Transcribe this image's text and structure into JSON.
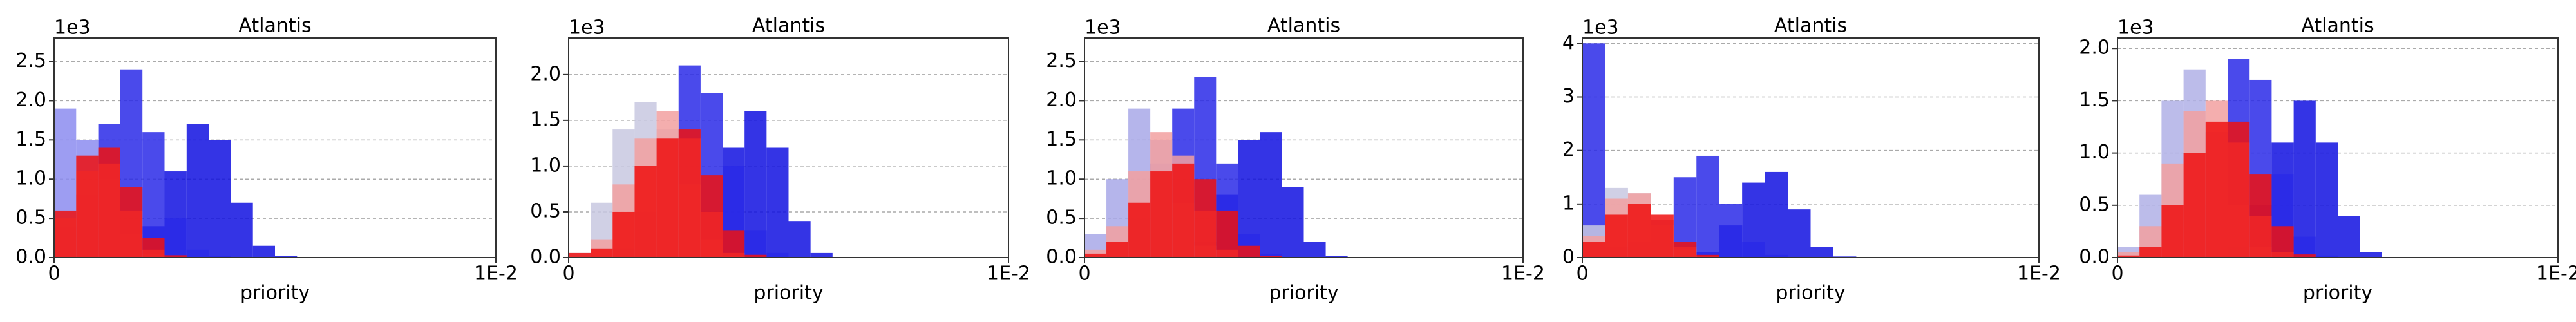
{
  "chart_data": [
    {
      "type": "histogram",
      "title": "Atlantis",
      "x_label": "priority",
      "y_offset_label": "1e3",
      "grid": true,
      "bins": [
        0,
        0.0005,
        0.001,
        0.0015,
        0.002,
        0.0025,
        0.003,
        0.0035,
        0.004,
        0.0045,
        0.005,
        0.0055,
        0.006,
        0.0065,
        0.007,
        0.0075,
        0.008,
        0.0085,
        0.009,
        0.0095,
        0.01
      ],
      "xlim": [
        0,
        0.01
      ],
      "xticks": [
        0,
        {
          "value": 0.01,
          "label": "1E-2"
        }
      ],
      "ylim": [
        0,
        2.8
      ],
      "yticks": [
        {
          "value": 0,
          "label": "0.0"
        },
        0.5,
        {
          "value": 1,
          "label": "1.0"
        },
        1.5,
        {
          "value": 2,
          "label": "2.0"
        },
        2.5
      ],
      "series": [
        {
          "color": "#1010e0",
          "values": [
            0,
            0,
            0,
            0.05,
            0.4,
            1.1,
            1.7,
            1.5,
            0.7,
            0.15,
            0.02,
            0,
            0,
            0,
            0,
            0,
            0,
            0,
            0,
            0
          ]
        },
        {
          "color": "#2a2ae8",
          "values": [
            0.4,
            0.8,
            1.7,
            2.4,
            1.6,
            0.5,
            0.1,
            0.02,
            0,
            0,
            0,
            0,
            0,
            0,
            0,
            0,
            0,
            0,
            0,
            0
          ]
        },
        {
          "color": "#8c8cf0",
          "values": [
            1.9,
            1.5,
            1,
            0.3,
            0.05,
            0,
            0,
            0,
            0,
            0,
            0,
            0,
            0,
            0,
            0,
            0,
            0,
            0,
            0,
            0
          ]
        },
        {
          "color": "#f2a0a0",
          "values": [
            0.5,
            1.1,
            1.2,
            0.6,
            0.1,
            0,
            0,
            0,
            0,
            0,
            0,
            0,
            0,
            0,
            0,
            0,
            0,
            0,
            0,
            0
          ]
        },
        {
          "color": "#ee1010",
          "values": [
            0.6,
            1.3,
            1.4,
            0.9,
            0.25,
            0.03,
            0,
            0,
            0,
            0,
            0,
            0,
            0,
            0,
            0,
            0,
            0,
            0,
            0,
            0
          ]
        }
      ]
    },
    {
      "type": "histogram",
      "title": "Atlantis",
      "x_label": "priority",
      "y_offset_label": "1e3",
      "grid": true,
      "bins": [
        0,
        0.0005,
        0.001,
        0.0015,
        0.002,
        0.0025,
        0.003,
        0.0035,
        0.004,
        0.0045,
        0.005,
        0.0055,
        0.006,
        0.0065,
        0.007,
        0.0075,
        0.008,
        0.0085,
        0.009,
        0.0095,
        0.01
      ],
      "xlim": [
        0,
        0.01
      ],
      "xticks": [
        0,
        {
          "value": 0.01,
          "label": "1E-2"
        }
      ],
      "ylim": [
        0,
        2.4
      ],
      "yticks": [
        {
          "value": 0,
          "label": "0.0"
        },
        0.5,
        {
          "value": 1,
          "label": "1.0"
        },
        1.5,
        {
          "value": 2,
          "label": "2.0"
        }
      ],
      "series": [
        {
          "color": "#1010e0",
          "values": [
            0,
            0,
            0,
            0,
            0,
            0.1,
            0.5,
            1.2,
            1.6,
            1.2,
            0.4,
            0.05,
            0,
            0,
            0,
            0,
            0,
            0,
            0,
            0
          ]
        },
        {
          "color": "#2a2ae8",
          "values": [
            0,
            0,
            0.1,
            0.5,
            1.3,
            2.1,
            1.8,
            1,
            0.3,
            0.05,
            0,
            0,
            0,
            0,
            0,
            0,
            0,
            0,
            0,
            0
          ]
        },
        {
          "color": "#c8c8e0",
          "values": [
            0.05,
            0.6,
            1.4,
            1.7,
            1.4,
            0.8,
            0.2,
            0.02,
            0,
            0,
            0,
            0,
            0,
            0,
            0,
            0,
            0,
            0,
            0,
            0
          ]
        },
        {
          "color": "#f2a0a0",
          "values": [
            0,
            0.2,
            0.8,
            1.3,
            1.6,
            1.3,
            0.5,
            0.05,
            0,
            0,
            0,
            0,
            0,
            0,
            0,
            0,
            0,
            0,
            0,
            0
          ]
        },
        {
          "color": "#ee1010",
          "values": [
            0.05,
            0.1,
            0.5,
            1,
            1.3,
            1.4,
            0.9,
            0.3,
            0.03,
            0,
            0,
            0,
            0,
            0,
            0,
            0,
            0,
            0,
            0,
            0
          ]
        }
      ]
    },
    {
      "type": "histogram",
      "title": "Atlantis",
      "x_label": "priority",
      "y_offset_label": "1e3",
      "grid": true,
      "bins": [
        0,
        0.0005,
        0.001,
        0.0015,
        0.002,
        0.0025,
        0.003,
        0.0035,
        0.004,
        0.0045,
        0.005,
        0.0055,
        0.006,
        0.0065,
        0.007,
        0.0075,
        0.008,
        0.0085,
        0.009,
        0.0095,
        0.01
      ],
      "xlim": [
        0,
        0.01
      ],
      "xticks": [
        0,
        {
          "value": 0.01,
          "label": "1E-2"
        }
      ],
      "ylim": [
        0,
        2.8
      ],
      "yticks": [
        {
          "value": 0,
          "label": "0.0"
        },
        0.5,
        {
          "value": 1,
          "label": "1.0"
        },
        1.5,
        {
          "value": 2,
          "label": "2.0"
        },
        2.5
      ],
      "series": [
        {
          "color": "#1010e0",
          "values": [
            0,
            0,
            0,
            0,
            0,
            0.2,
            0.8,
            1.5,
            1.6,
            0.9,
            0.2,
            0.02,
            0,
            0,
            0,
            0,
            0,
            0,
            0,
            0
          ]
        },
        {
          "color": "#2a2ae8",
          "values": [
            0,
            0.1,
            0.5,
            1.2,
            1.9,
            2.3,
            1.2,
            0.3,
            0.05,
            0,
            0,
            0,
            0,
            0,
            0,
            0,
            0,
            0,
            0,
            0
          ]
        },
        {
          "color": "#a8a8e8",
          "values": [
            0.3,
            1,
            1.9,
            1.5,
            0.7,
            0.15,
            0,
            0,
            0,
            0,
            0,
            0,
            0,
            0,
            0,
            0,
            0,
            0,
            0,
            0
          ]
        },
        {
          "color": "#f2a0a0",
          "values": [
            0.1,
            0.4,
            1.1,
            1.6,
            1.3,
            0.6,
            0.1,
            0,
            0,
            0,
            0,
            0,
            0,
            0,
            0,
            0,
            0,
            0,
            0,
            0
          ]
        },
        {
          "color": "#ee1010",
          "values": [
            0.05,
            0.2,
            0.7,
            1.1,
            1.2,
            1,
            0.6,
            0.15,
            0.02,
            0,
            0,
            0,
            0,
            0,
            0,
            0,
            0,
            0,
            0,
            0
          ]
        }
      ]
    },
    {
      "type": "histogram",
      "title": "Atlantis",
      "x_label": "priority",
      "y_offset_label": "1e3",
      "grid": true,
      "bins": [
        0,
        0.0005,
        0.001,
        0.0015,
        0.002,
        0.0025,
        0.003,
        0.0035,
        0.004,
        0.0045,
        0.005,
        0.0055,
        0.006,
        0.0065,
        0.007,
        0.0075,
        0.008,
        0.0085,
        0.009,
        0.0095,
        0.01
      ],
      "xlim": [
        0,
        0.01
      ],
      "xticks": [
        0,
        {
          "value": 0.01,
          "label": "1E-2"
        }
      ],
      "ylim": [
        0,
        4.1
      ],
      "yticks": [
        0,
        1,
        2,
        3,
        4
      ],
      "series": [
        {
          "color": "#1010e0",
          "values": [
            0,
            0,
            0,
            0,
            0,
            0.1,
            0.6,
            1.4,
            1.6,
            0.9,
            0.2,
            0.02,
            0,
            0,
            0,
            0,
            0,
            0,
            0,
            0
          ]
        },
        {
          "color": "#2a2ae8",
          "values": [
            4,
            0.2,
            0.3,
            0.7,
            1.5,
            1.9,
            1,
            0.3,
            0.05,
            0,
            0,
            0,
            0,
            0,
            0,
            0,
            0,
            0,
            0,
            0
          ]
        },
        {
          "color": "#c8c8e0",
          "values": [
            0.6,
            1.3,
            1.2,
            0.6,
            0.15,
            0,
            0,
            0,
            0,
            0,
            0,
            0,
            0,
            0,
            0,
            0,
            0,
            0,
            0,
            0
          ]
        },
        {
          "color": "#f2a0a0",
          "values": [
            0.4,
            1.1,
            1.2,
            0.7,
            0.2,
            0.02,
            0,
            0,
            0,
            0,
            0,
            0,
            0,
            0,
            0,
            0,
            0,
            0,
            0,
            0
          ]
        },
        {
          "color": "#ee1010",
          "values": [
            0.3,
            0.8,
            1,
            0.8,
            0.3,
            0.05,
            0,
            0,
            0,
            0,
            0,
            0,
            0,
            0,
            0,
            0,
            0,
            0,
            0,
            0
          ]
        }
      ]
    },
    {
      "type": "histogram",
      "title": "Atlantis",
      "x_label": "priority",
      "y_offset_label": "1e3",
      "grid": true,
      "bins": [
        0,
        0.0005,
        0.001,
        0.0015,
        0.002,
        0.0025,
        0.003,
        0.0035,
        0.004,
        0.0045,
        0.005,
        0.0055,
        0.006,
        0.0065,
        0.007,
        0.0075,
        0.008,
        0.0085,
        0.009,
        0.0095,
        0.01
      ],
      "xlim": [
        0,
        0.01
      ],
      "xticks": [
        0,
        {
          "value": 0.01,
          "label": "1E-2"
        }
      ],
      "ylim": [
        0,
        2.1
      ],
      "yticks": [
        {
          "value": 0,
          "label": "0.0"
        },
        0.5,
        {
          "value": 1,
          "label": "1.0"
        },
        1.5,
        {
          "value": 2,
          "label": "2.0"
        }
      ],
      "series": [
        {
          "color": "#1010e0",
          "values": [
            0,
            0,
            0,
            0,
            0,
            0.1,
            0.5,
            1.1,
            1.5,
            1.1,
            0.4,
            0.05,
            0,
            0,
            0,
            0,
            0,
            0,
            0,
            0
          ]
        },
        {
          "color": "#2a2ae8",
          "values": [
            0,
            0,
            0.1,
            0.5,
            1.2,
            1.9,
            1.7,
            0.8,
            0.2,
            0.02,
            0,
            0,
            0,
            0,
            0,
            0,
            0,
            0,
            0,
            0
          ]
        },
        {
          "color": "#b0b0e6",
          "values": [
            0.1,
            0.6,
            1.5,
            1.8,
            1.2,
            0.5,
            0.1,
            0,
            0,
            0,
            0,
            0,
            0,
            0,
            0,
            0,
            0,
            0,
            0,
            0
          ]
        },
        {
          "color": "#f2a0a0",
          "values": [
            0.05,
            0.3,
            0.9,
            1.4,
            1.5,
            1.1,
            0.4,
            0.05,
            0,
            0,
            0,
            0,
            0,
            0,
            0,
            0,
            0,
            0,
            0,
            0
          ]
        },
        {
          "color": "#ee1010",
          "values": [
            0.02,
            0.1,
            0.5,
            1,
            1.3,
            1.3,
            0.8,
            0.3,
            0.03,
            0,
            0,
            0,
            0,
            0,
            0,
            0,
            0,
            0,
            0,
            0
          ]
        }
      ]
    }
  ]
}
